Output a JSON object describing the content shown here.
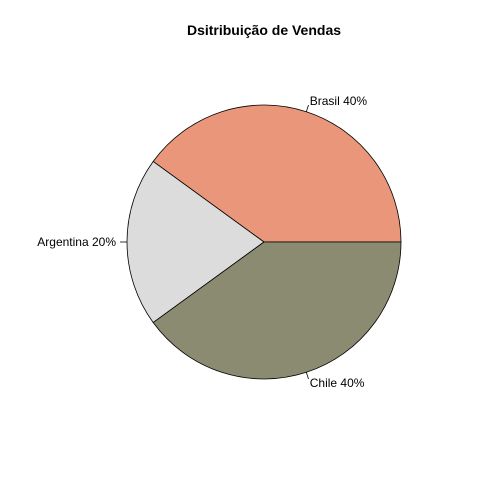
{
  "chart_data": {
    "type": "pie",
    "title": "Dsitribuição de Vendas",
    "slices": [
      {
        "label": "Brasil 40%",
        "name": "Brasil",
        "percent": 40,
        "color": "#E9967A"
      },
      {
        "label": "Argentina 20%",
        "name": "Argentina",
        "percent": 20,
        "color": "#DCDCDC"
      },
      {
        "label": "Chile 40%",
        "name": "Chile",
        "percent": 40,
        "color": "#8B8B72"
      }
    ],
    "start_angle_deg": 0,
    "direction": "counterclockwise",
    "border_color": "#000000"
  }
}
